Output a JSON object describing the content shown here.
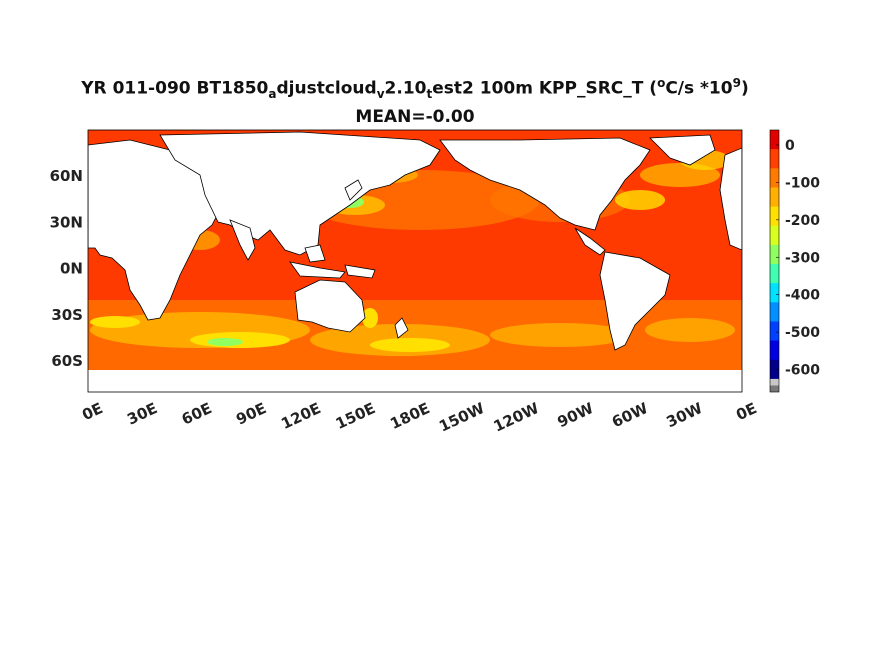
{
  "title": {
    "line1_prefix": "YR 011-090 BT1850",
    "sub1": "a",
    "mid1": "djustcloud",
    "sub2": "v",
    "mid2": "2.10",
    "sub3": "t",
    "mid3": "est2 100m KPP_SRC_T (",
    "sup1": "o",
    "mid4": "C/s *10",
    "sup2": "9",
    "suffix": ")",
    "line2": "MEAN=-0.00"
  },
  "map": {
    "lat_ticks": [
      "60N",
      "30N",
      "0N",
      "30S",
      "60S"
    ],
    "lat_values": [
      60,
      30,
      0,
      -30,
      -60
    ],
    "lon_ticks": [
      "0E",
      "30E",
      "60E",
      "90E",
      "120E",
      "150E",
      "180E",
      "150W",
      "120W",
      "90W",
      "60W",
      "30W",
      "0E"
    ],
    "lon_values": [
      0,
      30,
      60,
      90,
      120,
      150,
      180,
      210,
      240,
      270,
      300,
      330,
      360
    ],
    "lat_range": [
      -80,
      90
    ],
    "lon_range": [
      0,
      360
    ],
    "ocean_base_color": "#ff3a00",
    "land_color": "#ffffff"
  },
  "colorbar": {
    "labels": [
      "0",
      "-100",
      "-200",
      "-300",
      "-400",
      "-500",
      "-600"
    ],
    "values": [
      0,
      -100,
      -200,
      -300,
      -400,
      -500,
      -600
    ],
    "range": [
      -660,
      40
    ],
    "colors": [
      "#e00000",
      "#ff4000",
      "#ff7a00",
      "#ffb000",
      "#ffe000",
      "#d8ff20",
      "#90ff60",
      "#40ffb0",
      "#00e0ff",
      "#0090ff",
      "#0040ff",
      "#0000e0",
      "#00008a"
    ],
    "underflow_colors": [
      "#c8c8c8",
      "#787878"
    ]
  }
}
